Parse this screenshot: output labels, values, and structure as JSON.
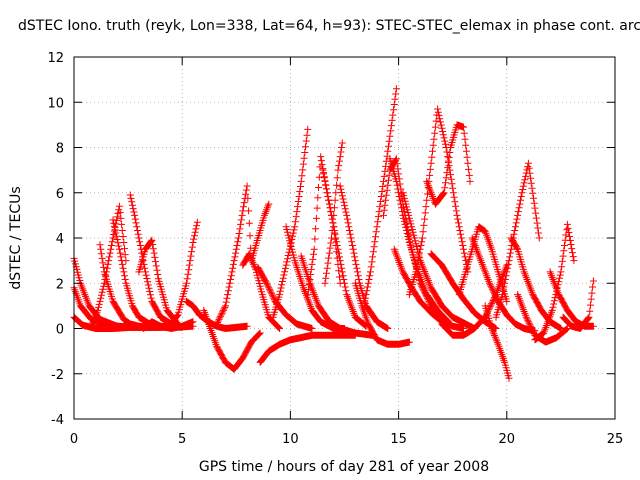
{
  "chart_data": {
    "type": "scatter",
    "title": "dSTEC Iono. truth (reyk, Lon=338, Lat=64, h=93): STEC-STEC_elemax in phase cont. arc",
    "xlabel": "GPS time / hours of day 281 of year 2008",
    "ylabel": "dSTEC  / TECUs",
    "xlim": [
      0,
      25
    ],
    "ylim": [
      -4,
      12
    ],
    "x_ticks": [
      0,
      5,
      10,
      15,
      20,
      25
    ],
    "y_ticks": [
      -4,
      -2,
      0,
      2,
      4,
      6,
      8,
      10,
      12
    ],
    "x_tick_labels": [
      "0",
      "5",
      "10",
      "15",
      "20",
      "25"
    ],
    "y_tick_labels": [
      "-4",
      "-2",
      "0",
      "2",
      "4",
      "6",
      "8",
      "10",
      "12"
    ],
    "grid": true,
    "marker": "plus",
    "color": "#ff0000",
    "series": [
      {
        "x": [
          0.0,
          0.3,
          0.7,
          1.2,
          2.0,
          3.0,
          4.5,
          5.5
        ],
        "y": [
          3.1,
          2.0,
          1.0,
          0.4,
          0.1,
          0.05,
          0.05,
          0.1
        ]
      },
      {
        "x": [
          0.0,
          0.3,
          0.8,
          1.5,
          2.5,
          3.5
        ],
        "y": [
          1.8,
          1.0,
          0.4,
          0.15,
          0.05,
          0.05
        ]
      },
      {
        "x": [
          0.0,
          0.4,
          1.0,
          1.8,
          2.6,
          3.6
        ],
        "y": [
          0.5,
          0.15,
          0.0,
          0.0,
          0.05,
          0.1
        ]
      },
      {
        "x": [
          0.8,
          1.1,
          1.4,
          1.8,
          2.1,
          2.4
        ],
        "y": [
          0.1,
          0.8,
          2.0,
          4.0,
          5.4,
          3.0
        ]
      },
      {
        "x": [
          1.2,
          1.4,
          1.8,
          2.3,
          2.6,
          3.0,
          3.4,
          3.8,
          4.5
        ],
        "y": [
          3.7,
          2.5,
          1.2,
          0.4,
          0.2,
          0.1,
          0.05,
          0.05,
          0.1
        ]
      },
      {
        "x": [
          1.8,
          2.1,
          2.4,
          2.7,
          3.0,
          3.5,
          4.0,
          5.0
        ],
        "y": [
          4.8,
          3.5,
          2.0,
          1.0,
          0.5,
          0.2,
          0.1,
          0.05
        ]
      },
      {
        "x": [
          2.6,
          2.8,
          3.0,
          3.3,
          3.6,
          4.0,
          4.5
        ],
        "y": [
          5.9,
          5.0,
          4.0,
          2.5,
          1.2,
          0.5,
          0.2
        ]
      },
      {
        "x": [
          3.0,
          3.3,
          3.6,
          3.9,
          4.3,
          4.8
        ],
        "y": [
          2.5,
          3.5,
          3.9,
          2.2,
          0.8,
          0.2
        ]
      },
      {
        "x": [
          3.2,
          3.6,
          4.0,
          4.5,
          5.0,
          5.5
        ],
        "y": [
          0.0,
          0.3,
          0.1,
          0.0,
          0.1,
          0.3
        ]
      },
      {
        "x": [
          4.4,
          4.8,
          5.2,
          5.5,
          5.7
        ],
        "y": [
          0.1,
          0.6,
          2.0,
          3.8,
          4.7
        ]
      },
      {
        "x": [
          5.2,
          5.5,
          5.8,
          6.2,
          6.6,
          7.0,
          7.5,
          8.0
        ],
        "y": [
          1.2,
          1.0,
          0.6,
          0.3,
          0.1,
          0.0,
          0.05,
          0.1
        ]
      },
      {
        "x": [
          6.0,
          6.3,
          6.6,
          7.0,
          7.4,
          7.8,
          8.2,
          8.6
        ],
        "y": [
          0.8,
          0.0,
          -0.8,
          -1.5,
          -1.8,
          -1.3,
          -0.6,
          -0.2
        ]
      },
      {
        "x": [
          6.6,
          7.0,
          7.3,
          7.6,
          7.8,
          8.0,
          8.2
        ],
        "y": [
          0.2,
          1.0,
          2.5,
          4.0,
          5.2,
          6.3,
          3.0
        ]
      },
      {
        "x": [
          7.8,
          8.1,
          8.4,
          8.7,
          9.0,
          9.5
        ],
        "y": [
          2.8,
          3.3,
          2.6,
          1.5,
          0.5,
          0.0
        ]
      },
      {
        "x": [
          8.2,
          8.5,
          8.8,
          9.0
        ],
        "y": [
          3.0,
          4.0,
          5.0,
          5.5
        ]
      },
      {
        "x": [
          8.5,
          8.9,
          9.3,
          9.8,
          10.3,
          11.0
        ],
        "y": [
          2.7,
          2.0,
          1.2,
          0.6,
          0.2,
          0.0
        ]
      },
      {
        "x": [
          8.6,
          9.0,
          9.5,
          10.0,
          10.5,
          11.0,
          12.0,
          13.0
        ],
        "y": [
          -1.5,
          -1.0,
          -0.7,
          -0.5,
          -0.4,
          -0.3,
          -0.3,
          -0.3
        ]
      },
      {
        "x": [
          9.2,
          9.5,
          9.8,
          10.2,
          10.5,
          10.8
        ],
        "y": [
          0.5,
          1.5,
          2.8,
          4.5,
          6.5,
          8.8
        ]
      },
      {
        "x": [
          9.8,
          10.2,
          10.6,
          11.0,
          11.4,
          12.0,
          12.5
        ],
        "y": [
          4.5,
          3.0,
          1.8,
          0.8,
          0.3,
          0.0,
          0.0
        ]
      },
      {
        "x": [
          10.5,
          10.9,
          11.3,
          11.8,
          12.3,
          13.0,
          13.8
        ],
        "y": [
          3.2,
          2.0,
          1.0,
          0.3,
          0.0,
          -0.2,
          -0.3
        ]
      },
      {
        "x": [
          10.8,
          11.1,
          11.4,
          11.7,
          12.0,
          12.3
        ],
        "y": [
          1.5,
          3.5,
          7.6,
          6.0,
          4.5,
          2.0
        ]
      },
      {
        "x": [
          11.5,
          11.7,
          12.0,
          12.3,
          12.6,
          13.0,
          13.5
        ],
        "y": [
          7.0,
          6.0,
          4.5,
          3.0,
          1.5,
          0.5,
          0.1
        ]
      },
      {
        "x": [
          11.6,
          11.9,
          12.2,
          12.4
        ],
        "y": [
          2.0,
          4.0,
          7.0,
          8.2
        ]
      },
      {
        "x": [
          12.3,
          12.6,
          12.9,
          13.2,
          13.5,
          14.0,
          14.5
        ],
        "y": [
          6.3,
          5.0,
          3.5,
          2.0,
          1.0,
          0.3,
          0.0
        ]
      },
      {
        "x": [
          13.0,
          13.3,
          13.6,
          14.0,
          14.5,
          15.0,
          15.5
        ],
        "y": [
          2.0,
          1.0,
          0.2,
          -0.5,
          -0.7,
          -0.7,
          -0.6
        ]
      },
      {
        "x": [
          13.4,
          13.7,
          14.0,
          14.3,
          14.6,
          14.9
        ],
        "y": [
          1.0,
          2.5,
          4.5,
          6.5,
          8.5,
          10.6
        ]
      },
      {
        "x": [
          14.3,
          14.6,
          14.9,
          15.2,
          15.6,
          16.0,
          16.5,
          17.0
        ],
        "y": [
          5.0,
          7.0,
          7.5,
          5.5,
          3.5,
          2.0,
          1.0,
          0.5
        ]
      },
      {
        "x": [
          14.6,
          14.9,
          15.2,
          15.5,
          15.9,
          16.3,
          16.8,
          17.3
        ],
        "y": [
          7.5,
          6.5,
          5.0,
          3.8,
          2.5,
          1.5,
          0.8,
          0.3
        ]
      },
      {
        "x": [
          14.8,
          15.2,
          15.6,
          16.0,
          16.5,
          17.0,
          17.5,
          18.0
        ],
        "y": [
          3.5,
          2.5,
          1.8,
          1.2,
          0.7,
          0.3,
          0.1,
          0.0
        ]
      },
      {
        "x": [
          15.2,
          15.6,
          16.0,
          16.5,
          17.0,
          17.5,
          18.5
        ],
        "y": [
          6.0,
          4.5,
          3.0,
          1.8,
          1.0,
          0.5,
          0.0
        ]
      },
      {
        "x": [
          15.5,
          15.8,
          16.1,
          16.4,
          16.8,
          17.2,
          17.7,
          18.2
        ],
        "y": [
          1.5,
          2.5,
          4.0,
          6.5,
          9.7,
          8.0,
          5.0,
          2.5
        ]
      },
      {
        "x": [
          16.3,
          16.7,
          17.1,
          17.4,
          17.7,
          18.0,
          18.3
        ],
        "y": [
          6.5,
          5.5,
          6.0,
          8.0,
          9.0,
          8.9,
          6.5
        ]
      },
      {
        "x": [
          16.5,
          17.0,
          17.5,
          18.0,
          18.5,
          19.0,
          19.5
        ],
        "y": [
          3.3,
          2.8,
          2.0,
          1.3,
          0.7,
          0.3,
          0.0
        ]
      },
      {
        "x": [
          17.0,
          17.5,
          18.0,
          18.5,
          19.0,
          19.5,
          20.0
        ],
        "y": [
          0.2,
          -0.3,
          -0.3,
          0.0,
          0.5,
          1.5,
          2.8
        ]
      },
      {
        "x": [
          17.8,
          18.1,
          18.4,
          18.7,
          19.0,
          19.3,
          19.6,
          20.0
        ],
        "y": [
          1.5,
          2.5,
          3.5,
          4.5,
          4.3,
          3.5,
          2.5,
          1.2
        ]
      },
      {
        "x": [
          18.4,
          18.8,
          19.2,
          19.6,
          20.0,
          20.4,
          20.8,
          21.3
        ],
        "y": [
          4.0,
          3.0,
          2.0,
          1.2,
          0.6,
          0.2,
          0.0,
          -0.1
        ]
      },
      {
        "x": [
          19.0,
          19.3,
          19.6,
          19.9,
          20.1
        ],
        "y": [
          1.0,
          0.0,
          -0.7,
          -1.5,
          -2.2
        ]
      },
      {
        "x": [
          19.5,
          19.8,
          20.1,
          20.4,
          20.7,
          21.0,
          21.5
        ],
        "y": [
          0.5,
          1.5,
          3.0,
          4.5,
          6.0,
          7.3,
          4.0
        ]
      },
      {
        "x": [
          20.2,
          20.5,
          20.8,
          21.2,
          21.6,
          22.0,
          22.5
        ],
        "y": [
          4.0,
          3.5,
          2.5,
          1.5,
          0.8,
          0.3,
          0.0
        ]
      },
      {
        "x": [
          20.5,
          20.9,
          21.3,
          21.8,
          22.3,
          22.8
        ],
        "y": [
          1.5,
          0.5,
          -0.3,
          -0.6,
          -0.4,
          0.0
        ]
      },
      {
        "x": [
          21.3,
          21.7,
          22.1,
          22.5,
          22.8,
          23.1
        ],
        "y": [
          -0.5,
          -0.2,
          0.8,
          2.5,
          4.6,
          3.0
        ]
      },
      {
        "x": [
          22.0,
          22.4,
          22.8,
          23.2,
          23.6,
          24.0
        ],
        "y": [
          2.5,
          1.5,
          0.8,
          0.3,
          0.1,
          0.1
        ]
      },
      {
        "x": [
          22.6,
          23.0,
          23.4,
          23.8,
          24.0
        ],
        "y": [
          0.5,
          0.1,
          0.0,
          0.5,
          2.1
        ]
      }
    ]
  }
}
